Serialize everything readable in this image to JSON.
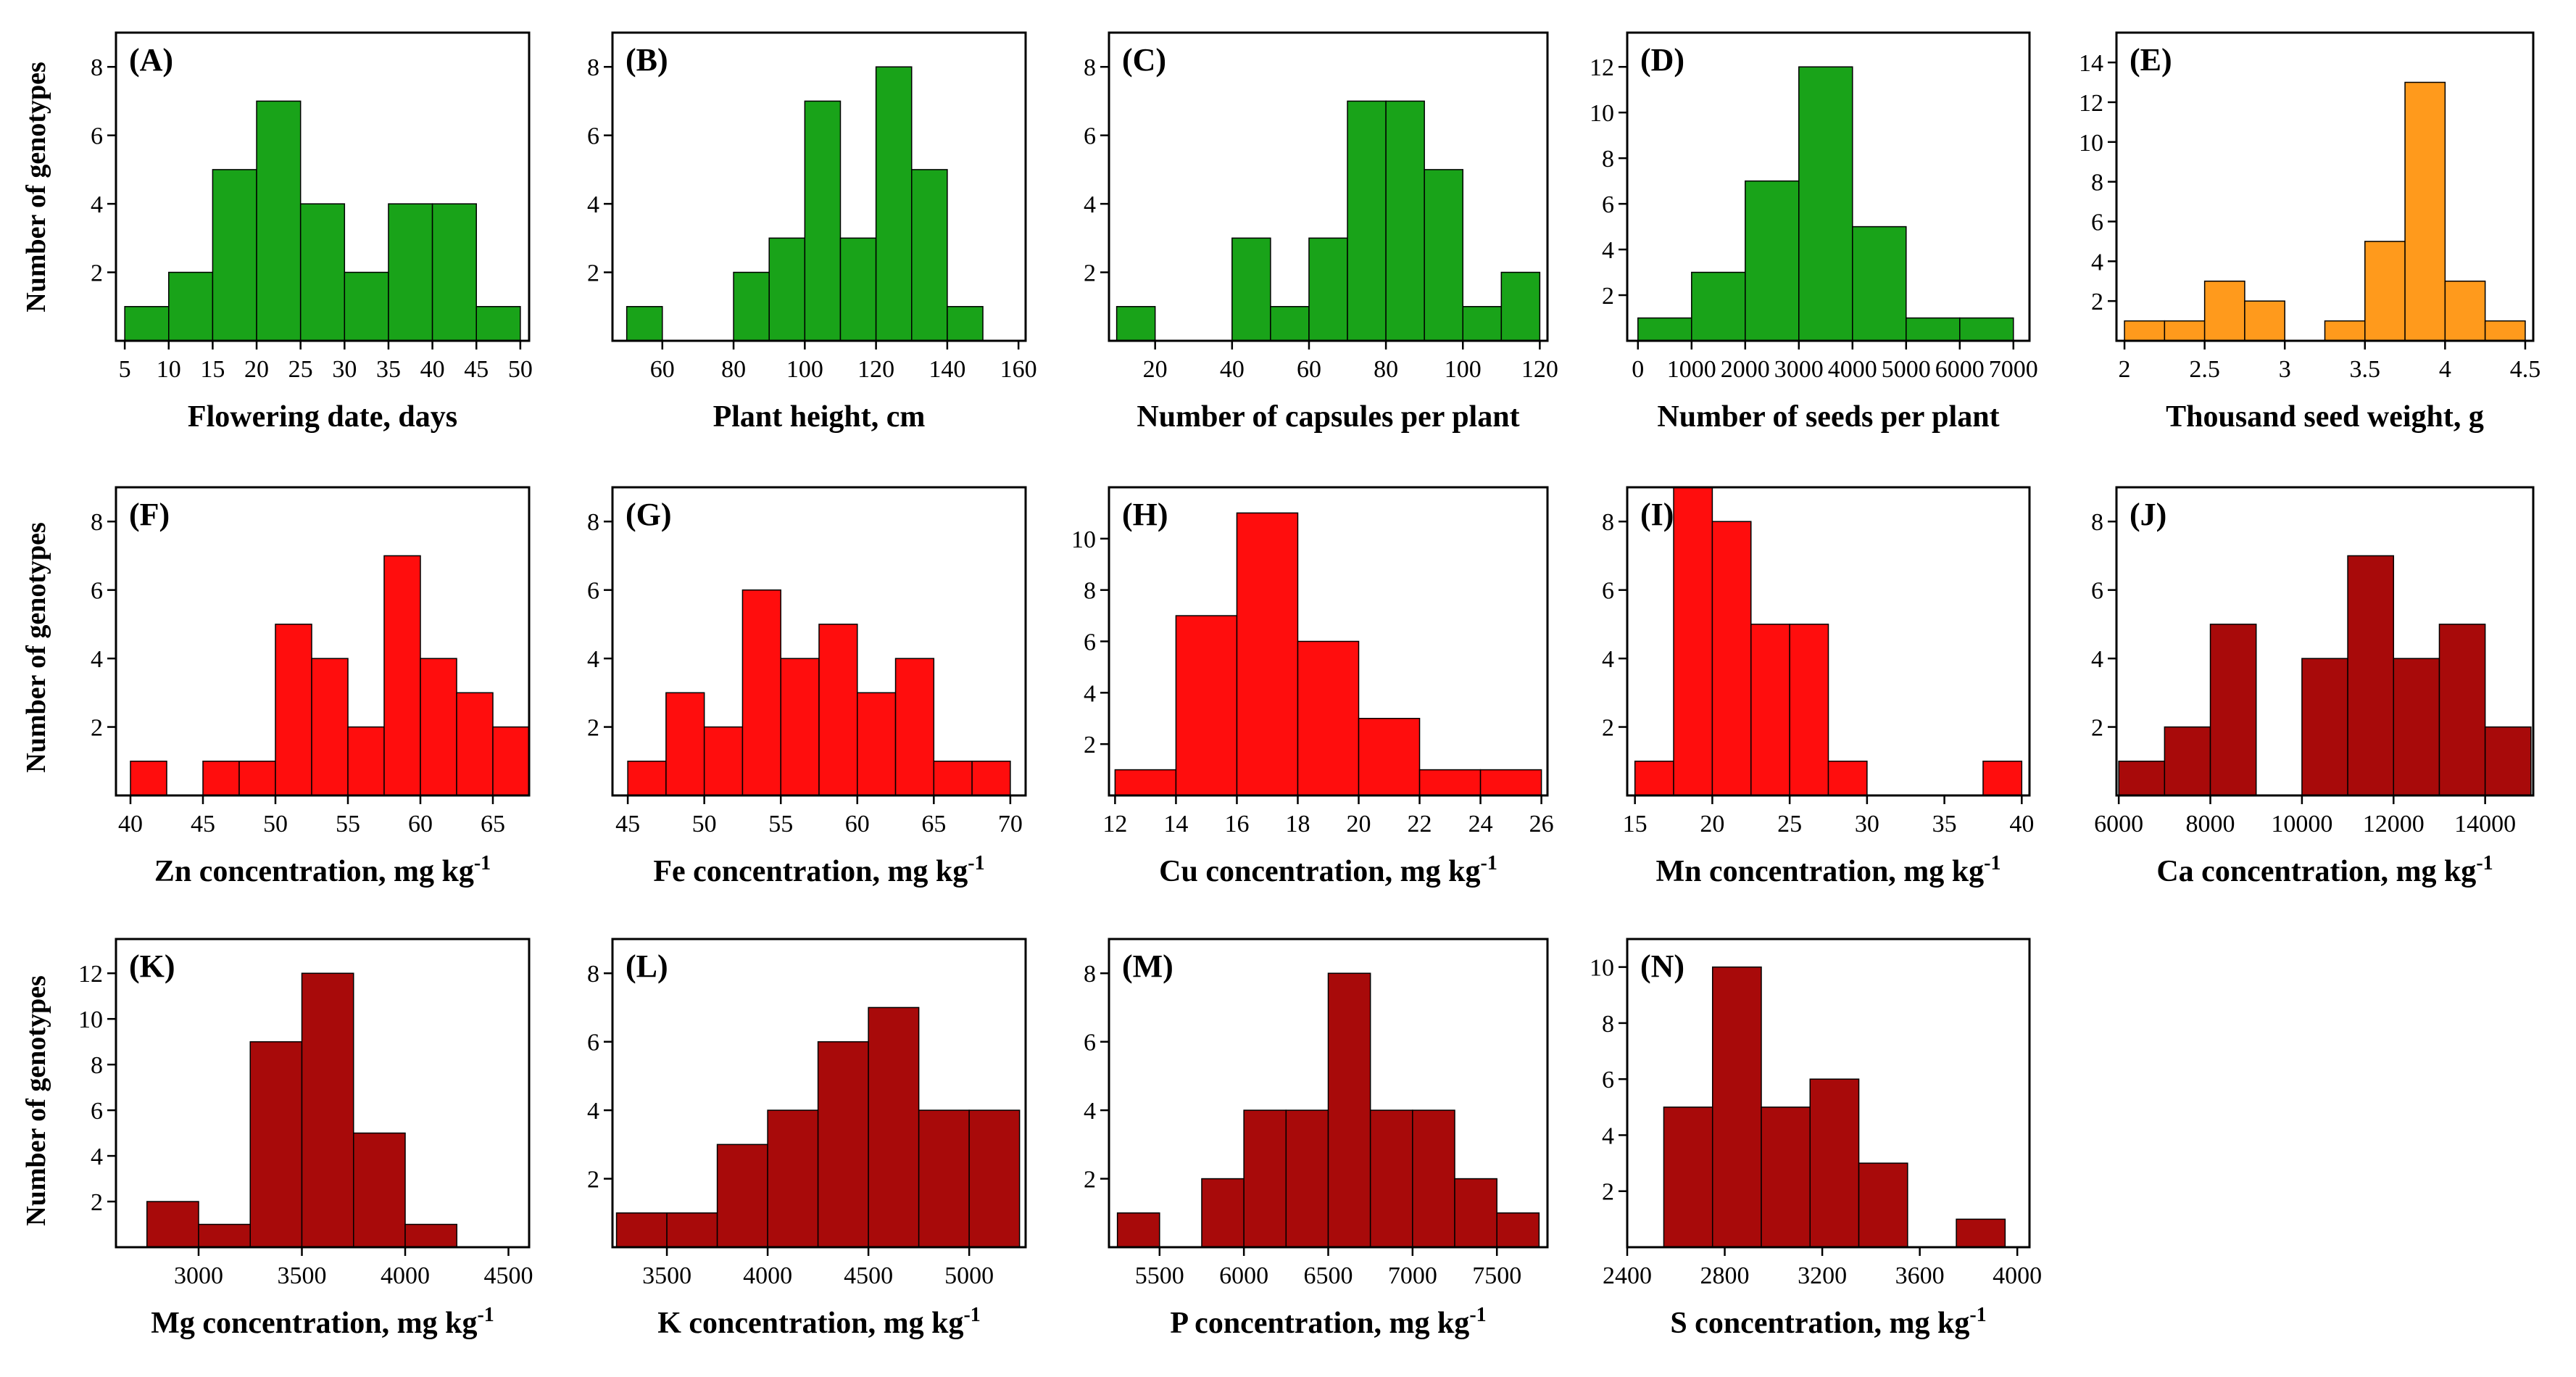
{
  "figure": {
    "y_axis_title": "Number of genotypes"
  },
  "chart_data": [
    {
      "id": "A",
      "type": "bar",
      "panel_label": "(A)",
      "xlabel": "Flowering date, days",
      "xlabel_sup": "",
      "ylabel": "Number of genotypes",
      "color": "#19a319",
      "xlim": [
        4,
        51
      ],
      "ylim": [
        0,
        9
      ],
      "xticks": [
        5,
        10,
        15,
        20,
        25,
        30,
        35,
        40,
        45,
        50
      ],
      "yticks": [
        2,
        4,
        6,
        8
      ],
      "bins": [
        [
          5,
          10,
          1
        ],
        [
          10,
          15,
          2
        ],
        [
          15,
          20,
          5
        ],
        [
          20,
          25,
          7
        ],
        [
          25,
          30,
          4
        ],
        [
          30,
          35,
          2
        ],
        [
          35,
          40,
          4
        ],
        [
          40,
          45,
          4
        ],
        [
          45,
          50,
          1
        ]
      ]
    },
    {
      "id": "B",
      "type": "bar",
      "panel_label": "(B)",
      "xlabel": "Plant height, cm",
      "xlabel_sup": "",
      "ylabel": "",
      "color": "#19a319",
      "xlim": [
        46,
        162
      ],
      "ylim": [
        0,
        9
      ],
      "xticks": [
        60,
        80,
        100,
        120,
        140,
        160
      ],
      "yticks": [
        2,
        4,
        6,
        8
      ],
      "bins": [
        [
          50,
          60,
          1
        ],
        [
          80,
          90,
          2
        ],
        [
          90,
          100,
          3
        ],
        [
          100,
          110,
          7
        ],
        [
          110,
          120,
          3
        ],
        [
          120,
          130,
          8
        ],
        [
          130,
          140,
          5
        ],
        [
          140,
          150,
          1
        ]
      ]
    },
    {
      "id": "C",
      "type": "bar",
      "panel_label": "(C)",
      "xlabel": "Number of capsules per plant",
      "xlabel_sup": "",
      "ylabel": "",
      "color": "#19a319",
      "xlim": [
        8,
        122
      ],
      "ylim": [
        0,
        9
      ],
      "xticks": [
        20,
        40,
        60,
        80,
        100,
        120
      ],
      "yticks": [
        2,
        4,
        6,
        8
      ],
      "bins": [
        [
          10,
          20,
          1
        ],
        [
          40,
          50,
          3
        ],
        [
          50,
          60,
          1
        ],
        [
          60,
          70,
          3
        ],
        [
          70,
          80,
          7
        ],
        [
          80,
          90,
          7
        ],
        [
          90,
          100,
          5
        ],
        [
          100,
          110,
          1
        ],
        [
          110,
          120,
          2
        ]
      ]
    },
    {
      "id": "D",
      "type": "bar",
      "panel_label": "(D)",
      "xlabel": "Number of seeds per plant",
      "xlabel_sup": "",
      "ylabel": "",
      "color": "#19a319",
      "xlim": [
        -200,
        7300
      ],
      "ylim": [
        0,
        13.5
      ],
      "xticks": [
        0,
        1000,
        2000,
        3000,
        4000,
        5000,
        6000,
        7000
      ],
      "yticks": [
        2,
        4,
        6,
        8,
        10,
        12
      ],
      "bins": [
        [
          0,
          1000,
          1
        ],
        [
          1000,
          2000,
          3
        ],
        [
          2000,
          3000,
          7
        ],
        [
          3000,
          4000,
          12
        ],
        [
          4000,
          5000,
          5
        ],
        [
          5000,
          6000,
          1
        ],
        [
          6000,
          7000,
          1
        ]
      ]
    },
    {
      "id": "E",
      "type": "bar",
      "panel_label": "(E)",
      "xlabel": "Thousand seed weight, g",
      "xlabel_sup": "",
      "ylabel": "",
      "color": "#ff9a1c",
      "xlim": [
        1.95,
        4.55
      ],
      "ylim": [
        0,
        15.5
      ],
      "xticks": [
        2,
        2.5,
        3,
        3.5,
        4,
        4.5
      ],
      "yticks": [
        2,
        4,
        6,
        8,
        10,
        12,
        14
      ],
      "bins": [
        [
          2.0,
          2.25,
          1
        ],
        [
          2.25,
          2.5,
          1
        ],
        [
          2.5,
          2.75,
          3
        ],
        [
          2.75,
          3.0,
          2
        ],
        [
          3.25,
          3.5,
          1
        ],
        [
          3.5,
          3.75,
          5
        ],
        [
          3.75,
          4.0,
          13
        ],
        [
          4.0,
          4.25,
          3
        ],
        [
          4.25,
          4.5,
          1
        ]
      ]
    },
    {
      "id": "F",
      "type": "bar",
      "panel_label": "(F)",
      "xlabel": "Zn concentration, mg kg",
      "xlabel_sup": "-1",
      "ylabel": "Number of genotypes",
      "color": "#ff0d0d",
      "xlim": [
        39,
        67.5
      ],
      "ylim": [
        0,
        9
      ],
      "xticks": [
        40,
        45,
        50,
        55,
        60,
        65
      ],
      "yticks": [
        2,
        4,
        6,
        8
      ],
      "bins": [
        [
          40,
          42.5,
          1
        ],
        [
          45,
          47.5,
          1
        ],
        [
          47.5,
          50,
          1
        ],
        [
          50,
          52.5,
          5
        ],
        [
          52.5,
          55,
          4
        ],
        [
          55,
          57.5,
          2
        ],
        [
          57.5,
          60,
          7
        ],
        [
          60,
          62.5,
          4
        ],
        [
          62.5,
          65,
          3
        ],
        [
          65,
          67.5,
          2
        ]
      ]
    },
    {
      "id": "G",
      "type": "bar",
      "panel_label": "(G)",
      "xlabel": "Fe concentration, mg kg",
      "xlabel_sup": "-1",
      "ylabel": "",
      "color": "#ff0d0d",
      "xlim": [
        44,
        71
      ],
      "ylim": [
        0,
        9
      ],
      "xticks": [
        45,
        50,
        55,
        60,
        65,
        70
      ],
      "yticks": [
        2,
        4,
        6,
        8
      ],
      "bins": [
        [
          45,
          47.5,
          1
        ],
        [
          47.5,
          50,
          3
        ],
        [
          50,
          52.5,
          2
        ],
        [
          52.5,
          55,
          6
        ],
        [
          55,
          57.5,
          4
        ],
        [
          57.5,
          60,
          5
        ],
        [
          60,
          62.5,
          3
        ],
        [
          62.5,
          65,
          4
        ],
        [
          65,
          67.5,
          1
        ],
        [
          67.5,
          70,
          1
        ]
      ]
    },
    {
      "id": "H",
      "type": "bar",
      "panel_label": "(H)",
      "xlabel": "Cu concentration, mg kg",
      "xlabel_sup": "-1",
      "ylabel": "",
      "color": "#ff0d0d",
      "xlim": [
        11.8,
        26.2
      ],
      "ylim": [
        0,
        12
      ],
      "xticks": [
        12,
        14,
        16,
        18,
        20,
        22,
        24,
        26
      ],
      "yticks": [
        2,
        4,
        6,
        8,
        10
      ],
      "bins": [
        [
          12,
          14,
          1
        ],
        [
          14,
          16,
          7
        ],
        [
          16,
          18,
          11
        ],
        [
          18,
          20,
          6
        ],
        [
          20,
          22,
          3
        ],
        [
          22,
          24,
          1
        ],
        [
          24,
          26,
          1
        ]
      ]
    },
    {
      "id": "I",
      "type": "bar",
      "panel_label": "(I)",
      "xlabel": "Mn concentration, mg kg",
      "xlabel_sup": "-1",
      "ylabel": "",
      "color": "#ff0d0d",
      "xlim": [
        14.5,
        40.5
      ],
      "ylim": [
        0,
        9
      ],
      "xticks": [
        15,
        20,
        25,
        30,
        35,
        40
      ],
      "yticks": [
        2,
        4,
        6,
        8
      ],
      "bins": [
        [
          15,
          17.5,
          1
        ],
        [
          17.5,
          20,
          9
        ],
        [
          20,
          22.5,
          8
        ],
        [
          22.5,
          25,
          5
        ],
        [
          25,
          27.5,
          5
        ],
        [
          27.5,
          30,
          1
        ],
        [
          37.5,
          40,
          1
        ]
      ]
    },
    {
      "id": "J",
      "type": "bar",
      "panel_label": "(J)",
      "xlabel": "Ca concentration, mg kg",
      "xlabel_sup": "-1",
      "ylabel": "",
      "color": "#a80a0a",
      "xlim": [
        5950,
        15050
      ],
      "ylim": [
        0,
        9
      ],
      "xticks": [
        6000,
        8000,
        10000,
        12000,
        14000
      ],
      "yticks": [
        2,
        4,
        6,
        8
      ],
      "bins": [
        [
          6000,
          7000,
          1
        ],
        [
          7000,
          8000,
          2
        ],
        [
          8000,
          9000,
          5
        ],
        [
          10000,
          11000,
          4
        ],
        [
          11000,
          12000,
          7
        ],
        [
          12000,
          13000,
          4
        ],
        [
          13000,
          14000,
          5
        ],
        [
          14000,
          15000,
          2
        ]
      ]
    },
    {
      "id": "K",
      "type": "bar",
      "panel_label": "(K)",
      "xlabel": "Mg concentration, mg kg",
      "xlabel_sup": "-1",
      "ylabel": "Number of genotypes",
      "color": "#a80a0a",
      "xlim": [
        2600,
        4600
      ],
      "ylim": [
        0,
        13.5
      ],
      "xticks": [
        3000,
        3500,
        4000,
        4500
      ],
      "yticks": [
        2,
        4,
        6,
        8,
        10,
        12
      ],
      "bins": [
        [
          2750,
          3000,
          2
        ],
        [
          3000,
          3250,
          1
        ],
        [
          3250,
          3500,
          9
        ],
        [
          3500,
          3750,
          12
        ],
        [
          3750,
          4000,
          5
        ],
        [
          4000,
          4250,
          1
        ]
      ]
    },
    {
      "id": "L",
      "type": "bar",
      "panel_label": "(L)",
      "xlabel": "K concentration, mg kg",
      "xlabel_sup": "-1",
      "ylabel": "",
      "color": "#a80a0a",
      "xlim": [
        3230,
        5280
      ],
      "ylim": [
        0,
        9
      ],
      "xticks": [
        3500,
        4000,
        4500,
        5000
      ],
      "yticks": [
        2,
        4,
        6,
        8
      ],
      "bins": [
        [
          3250,
          3500,
          1
        ],
        [
          3500,
          3750,
          1
        ],
        [
          3750,
          4000,
          3
        ],
        [
          4000,
          4250,
          4
        ],
        [
          4250,
          4500,
          6
        ],
        [
          4500,
          4750,
          7
        ],
        [
          4750,
          5000,
          4
        ],
        [
          5000,
          5250,
          4
        ]
      ]
    },
    {
      "id": "M",
      "type": "bar",
      "panel_label": "(M)",
      "xlabel": "P concentration, mg kg",
      "xlabel_sup": "-1",
      "ylabel": "",
      "color": "#a80a0a",
      "xlim": [
        5200,
        7800
      ],
      "ylim": [
        0,
        9
      ],
      "xticks": [
        5500,
        6000,
        6500,
        7000,
        7500
      ],
      "yticks": [
        2,
        4,
        6,
        8
      ],
      "bins": [
        [
          5250,
          5500,
          1
        ],
        [
          5750,
          6000,
          2
        ],
        [
          6000,
          6250,
          4
        ],
        [
          6250,
          6500,
          4
        ],
        [
          6500,
          6750,
          8
        ],
        [
          6750,
          7000,
          4
        ],
        [
          7000,
          7250,
          4
        ],
        [
          7250,
          7500,
          2
        ],
        [
          7500,
          7750,
          1
        ]
      ]
    },
    {
      "id": "N",
      "type": "bar",
      "panel_label": "(N)",
      "xlabel": "S concentration, mg kg",
      "xlabel_sup": "-1",
      "ylabel": "",
      "color": "#a80a0a",
      "xlim": [
        2400,
        4050
      ],
      "ylim": [
        0,
        11
      ],
      "xticks": [
        2400,
        2800,
        3200,
        3600,
        4000
      ],
      "yticks": [
        2,
        4,
        6,
        8,
        10
      ],
      "bins": [
        [
          2550,
          2750,
          5
        ],
        [
          2750,
          2950,
          10
        ],
        [
          2950,
          3150,
          5
        ],
        [
          3150,
          3350,
          6
        ],
        [
          3350,
          3550,
          3
        ],
        [
          3750,
          3950,
          1
        ]
      ]
    }
  ]
}
